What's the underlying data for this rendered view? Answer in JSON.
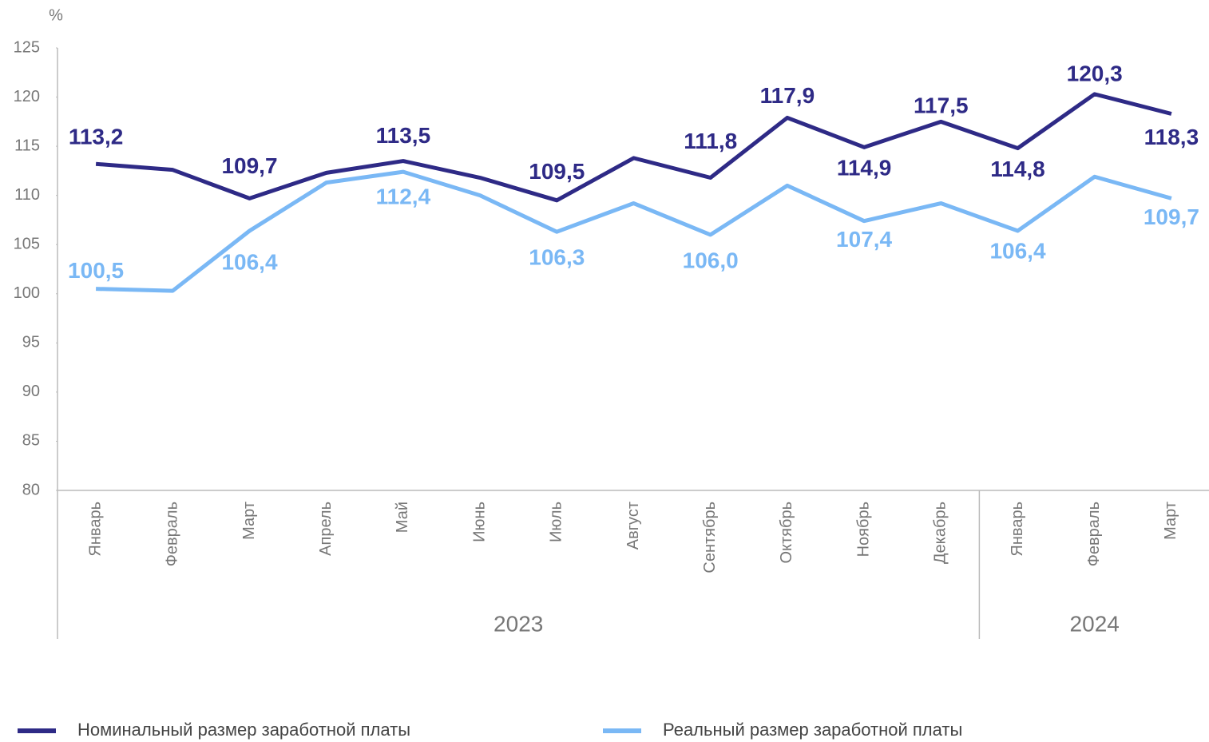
{
  "chart_data": {
    "type": "line",
    "y_label": "%",
    "categories": [
      "Январь",
      "Февраль",
      "Март",
      "Апрель",
      "Май",
      "Июнь",
      "Июль",
      "Август",
      "Сентябрь",
      "Октябрь",
      "Ноябрь",
      "Декабрь",
      "Январь",
      "Февраль",
      "Март"
    ],
    "groups": [
      {
        "label": "2023",
        "size": 12
      },
      {
        "label": "2024",
        "size": 3
      }
    ],
    "series": [
      {
        "name": "Номинальный размер заработной платы",
        "color": "#2e2a86",
        "values": [
          113.2,
          112.6,
          109.7,
          112.3,
          113.5,
          111.8,
          109.5,
          113.8,
          111.8,
          117.9,
          114.9,
          117.5,
          114.8,
          120.3,
          118.3
        ],
        "value_labels": [
          "113,2",
          null,
          "109,7",
          null,
          "113,5",
          null,
          "109,5",
          null,
          "111,8",
          "117,9",
          "114,9",
          "117,5",
          "114,8",
          "120,3",
          "118,3"
        ]
      },
      {
        "name": "Реальный размер заработной платы",
        "color": "#7ab8f5",
        "values": [
          100.5,
          100.3,
          106.4,
          111.3,
          112.4,
          110.0,
          106.3,
          109.2,
          106.0,
          111.0,
          107.4,
          109.2,
          106.4,
          111.9,
          109.7
        ],
        "value_labels": [
          "100,5",
          null,
          "106,4",
          null,
          "112,4",
          null,
          "106,3",
          null,
          "106,0",
          null,
          "107,4",
          null,
          "106,4",
          null,
          "109,7"
        ]
      }
    ],
    "ylim": [
      80,
      125
    ],
    "yticks": [
      80,
      85,
      90,
      95,
      100,
      105,
      110,
      115,
      120,
      125
    ]
  }
}
